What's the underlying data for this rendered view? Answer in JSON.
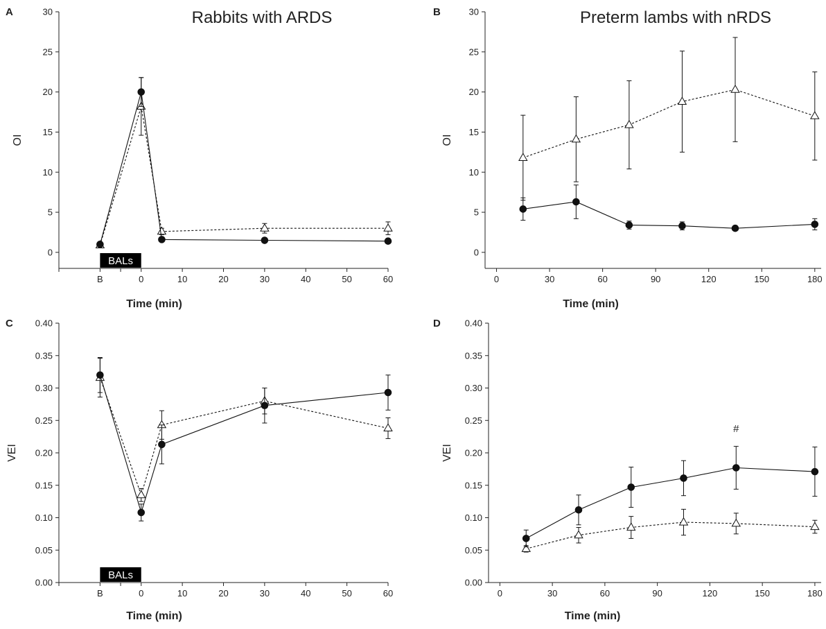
{
  "chart_data": [
    {
      "panel": "A",
      "type": "line",
      "title": "Rabbits with ARDS",
      "xlabel": "Time (min)",
      "ylabel": "OI",
      "xlim": [
        -20,
        60
      ],
      "ylim": [
        -2,
        30
      ],
      "xticks": [
        -10,
        0,
        10,
        20,
        30,
        40,
        50,
        60
      ],
      "xtick_labels": [
        "B",
        "0",
        "10",
        "20",
        "30",
        "40",
        "50",
        "60"
      ],
      "minor_xticks": [
        -20,
        -5
      ],
      "yticks": [
        0,
        5,
        10,
        15,
        20,
        25,
        30
      ],
      "ytick_labels": [
        "0",
        "5",
        "10",
        "15",
        "20",
        "25",
        "30"
      ],
      "annotation_bar": {
        "label": "BALs",
        "x_start": -10,
        "x_end": 0
      },
      "series": [
        {
          "name": "filled circles",
          "marker": "circle",
          "line": "solid",
          "x": [
            -10,
            0,
            5,
            30,
            60
          ],
          "y": [
            1.0,
            20.0,
            1.6,
            1.5,
            1.4
          ],
          "err": [
            0.2,
            1.8,
            0.2,
            0.3,
            0.3
          ]
        },
        {
          "name": "open triangles",
          "marker": "triangle",
          "line": "dashed",
          "x": [
            -10,
            0,
            5,
            30,
            60
          ],
          "y": [
            0.9,
            18.2,
            2.6,
            3.0,
            3.0
          ],
          "err": [
            0.3,
            3.6,
            0.4,
            0.6,
            0.8
          ]
        }
      ]
    },
    {
      "panel": "B",
      "type": "line",
      "title": "Preterm lambs with nRDS",
      "xlabel": "Time (min)",
      "ylabel": "OI",
      "xlim": [
        0,
        180
      ],
      "ylim": [
        -2,
        30
      ],
      "xticks": [
        0,
        30,
        60,
        90,
        120,
        150,
        180
      ],
      "xtick_labels": [
        "0",
        "30",
        "60",
        "90",
        "120",
        "150",
        "180"
      ],
      "minor_xticks": [],
      "yticks": [
        0,
        5,
        10,
        15,
        20,
        25,
        30
      ],
      "ytick_labels": [
        "0",
        "5",
        "10",
        "15",
        "20",
        "25",
        "30"
      ],
      "series": [
        {
          "name": "filled circles",
          "marker": "circle",
          "line": "solid",
          "x": [
            15,
            45,
            75,
            105,
            135,
            180
          ],
          "y": [
            5.4,
            6.3,
            3.4,
            3.3,
            3.0,
            3.5
          ],
          "err": [
            1.4,
            2.1,
            0.5,
            0.5,
            0.2,
            0.7
          ]
        },
        {
          "name": "open triangles",
          "marker": "triangle",
          "line": "dashed",
          "x": [
            15,
            45,
            75,
            105,
            135,
            180
          ],
          "y": [
            11.8,
            14.1,
            15.9,
            18.8,
            20.3,
            17.0
          ],
          "err": [
            5.3,
            5.3,
            5.5,
            6.3,
            6.5,
            5.5
          ]
        }
      ]
    },
    {
      "panel": "C",
      "type": "line",
      "title": "",
      "xlabel": "Time (min)",
      "ylabel": "VEI",
      "xlim": [
        -20,
        60
      ],
      "ylim": [
        0,
        0.4
      ],
      "xticks": [
        -10,
        0,
        10,
        20,
        30,
        40,
        50,
        60
      ],
      "xtick_labels": [
        "B",
        "0",
        "10",
        "20",
        "30",
        "40",
        "50",
        "60"
      ],
      "minor_xticks": [
        -20,
        -5
      ],
      "yticks": [
        0,
        0.05,
        0.1,
        0.15,
        0.2,
        0.25,
        0.3,
        0.35,
        0.4
      ],
      "ytick_labels": [
        "0.00",
        "0.05",
        "0.10",
        "0.15",
        "0.20",
        "0.25",
        "0.30",
        "0.35",
        "0.40"
      ],
      "annotation_bar": {
        "label": "BALs",
        "x_start": -10,
        "x_end": 0
      },
      "series": [
        {
          "name": "filled circles",
          "marker": "circle",
          "line": "solid",
          "x": [
            -10,
            0,
            5,
            30,
            60
          ],
          "y": [
            0.32,
            0.108,
            0.213,
            0.273,
            0.293
          ],
          "err": [
            0.027,
            0.013,
            0.03,
            0.027,
            0.027
          ]
        },
        {
          "name": "open triangles",
          "marker": "triangle",
          "line": "dashed",
          "x": [
            -10,
            0,
            5,
            30,
            60
          ],
          "y": [
            0.316,
            0.135,
            0.243,
            0.28,
            0.238
          ],
          "err": [
            0.03,
            0.01,
            0.022,
            0.02,
            0.016
          ]
        }
      ]
    },
    {
      "panel": "D",
      "type": "line",
      "title": "",
      "xlabel": "Time (min)",
      "ylabel": "VEI",
      "xlim": [
        0,
        180
      ],
      "ylim": [
        0,
        0.4
      ],
      "xticks": [
        0,
        30,
        60,
        90,
        120,
        150,
        180
      ],
      "xtick_labels": [
        "0",
        "30",
        "60",
        "90",
        "120",
        "150",
        "180"
      ],
      "minor_xticks": [],
      "yticks": [
        0,
        0.05,
        0.1,
        0.15,
        0.2,
        0.25,
        0.3,
        0.35,
        0.4
      ],
      "ytick_labels": [
        "0.00",
        "0.05",
        "0.10",
        "0.15",
        "0.20",
        "0.25",
        "0.30",
        "0.35",
        "0.40"
      ],
      "point_annotation": {
        "label": "#",
        "x": 135,
        "y": 0.232
      },
      "series": [
        {
          "name": "filled circles",
          "marker": "circle",
          "line": "solid",
          "x": [
            15,
            45,
            75,
            105,
            135,
            180
          ],
          "y": [
            0.068,
            0.112,
            0.147,
            0.161,
            0.177,
            0.171
          ],
          "err": [
            0.013,
            0.023,
            0.031,
            0.027,
            0.033,
            0.038
          ]
        },
        {
          "name": "open triangles",
          "marker": "triangle",
          "line": "dashed",
          "x": [
            15,
            45,
            75,
            105,
            135,
            180
          ],
          "y": [
            0.052,
            0.073,
            0.085,
            0.093,
            0.091,
            0.086
          ],
          "err": [
            0.005,
            0.012,
            0.017,
            0.02,
            0.016,
            0.01
          ]
        }
      ]
    }
  ]
}
